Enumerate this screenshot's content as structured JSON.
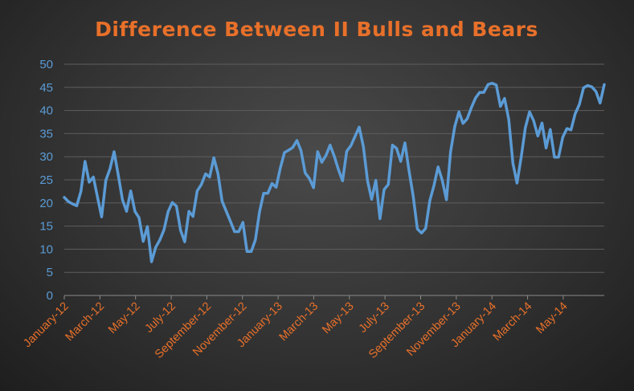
{
  "chart_data": {
    "type": "line",
    "title": "Difference Between II Bulls and Bears",
    "xlabel": "",
    "ylabel": "",
    "ylim": [
      0,
      50
    ],
    "yticks": [
      0,
      5,
      10,
      15,
      20,
      25,
      30,
      35,
      40,
      45,
      50
    ],
    "xtick_labels": [
      "January-12",
      "March-12",
      "May-12",
      "July-12",
      "September-12",
      "November-12",
      "January-13",
      "March-13",
      "May-13",
      "July-13",
      "September-13",
      "November-13",
      "January-14",
      "March-14",
      "May-14"
    ],
    "grid": true,
    "legend": "none",
    "series": [
      {
        "color": "#5b9bd5",
        "values": [
          21.2,
          20.3,
          19.8,
          19.4,
          22.5,
          29.0,
          24.5,
          25.6,
          21.2,
          17.0,
          24.9,
          27.4,
          31.1,
          26.0,
          20.7,
          18.2,
          22.6,
          18.2,
          16.8,
          11.7,
          14.9,
          7.3,
          10.4,
          12.0,
          14.2,
          18.1,
          20.1,
          19.3,
          14.1,
          11.6,
          18.2,
          17.1,
          22.6,
          24.0,
          26.3,
          25.6,
          29.8,
          26.3,
          20.4,
          18.2,
          16.0,
          13.8,
          13.8,
          15.8,
          9.5,
          9.5,
          12.0,
          18.1,
          22.1,
          22.1,
          24.2,
          23.4,
          27.5,
          30.9,
          31.4,
          32.0,
          33.5,
          31.3,
          26.5,
          25.3,
          23.3,
          31.1,
          28.8,
          30.3,
          32.5,
          30.1,
          27.2,
          24.8,
          31.2,
          32.4,
          34.4,
          36.4,
          32.2,
          24.8,
          20.8,
          24.9,
          16.6,
          22.9,
          24.0,
          32.5,
          31.8,
          29.0,
          33.0,
          27.0,
          21.5,
          14.4,
          13.5,
          14.5,
          20.5,
          23.8,
          27.8,
          24.9,
          20.7,
          31.0,
          36.5,
          39.7,
          37.2,
          38.2,
          40.6,
          42.7,
          43.9,
          43.9,
          45.6,
          45.9,
          45.5,
          40.9,
          42.6,
          38.1,
          28.6,
          24.3,
          29.9,
          36.3,
          39.7,
          37.8,
          34.5,
          37.3,
          31.9,
          35.9,
          29.9,
          29.9,
          34.2,
          36.1,
          35.8,
          39.3,
          41.3,
          44.9,
          45.4,
          45.1,
          44.1,
          41.6,
          45.6
        ]
      }
    ]
  }
}
